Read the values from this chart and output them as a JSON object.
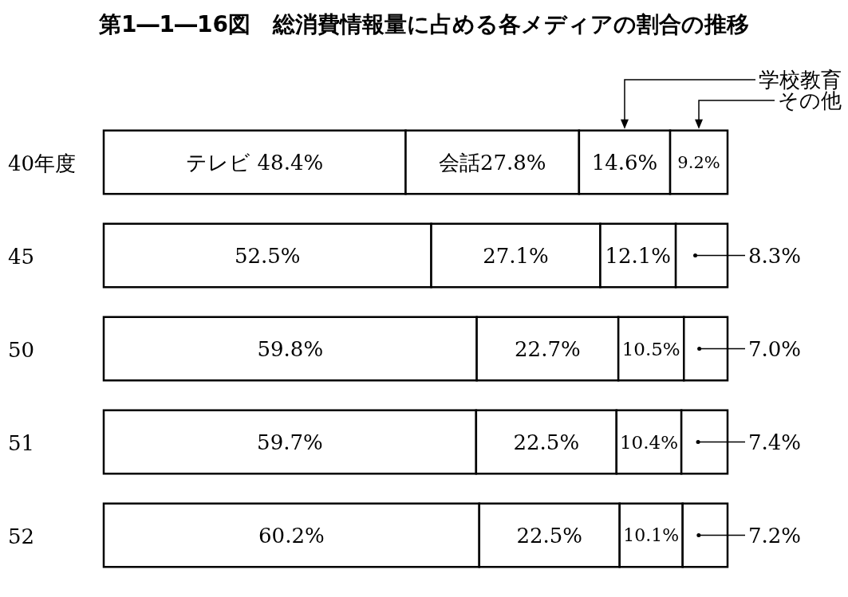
{
  "chart_data": {
    "type": "bar",
    "title": "第1―1―16図　総消費情報量に占める各メディアの割合の推移",
    "orientation": "horizontal",
    "stacked": true,
    "xlim": [
      0,
      100
    ],
    "tick_labels": "y",
    "legend": "top right",
    "categories": [
      "40年度",
      "45",
      "50",
      "51",
      "52"
    ],
    "series": [
      {
        "color": "#ffffff",
        "values": [
          48.4,
          52.5,
          59.8,
          59.7,
          60.2
        ],
        "value_labels": [
          "テレビ 48.4%",
          "52.5%",
          "59.8%",
          "59.7%",
          "60.2%"
        ]
      },
      {
        "color": "#ffffff",
        "values": [
          27.8,
          27.1,
          22.7,
          22.5,
          22.5
        ],
        "value_labels": [
          "会話27.8%",
          "27.1%",
          "22.7%",
          "22.5%",
          "22.5%"
        ]
      },
      {
        "name": "学校教育",
        "color": "#ffffff",
        "values": [
          14.6,
          12.1,
          10.5,
          10.4,
          10.1
        ],
        "value_labels": [
          "14.6%",
          "12.1%",
          "10.5%",
          "10.4%",
          "10.1%"
        ]
      },
      {
        "name": "その他",
        "color": "#ffffff",
        "values": [
          9.2,
          8.3,
          7.0,
          7.4,
          7.2
        ],
        "value_labels": [
          "9.2%",
          "8.3%",
          "7.0%",
          "7.4%",
          "7.2%"
        ]
      }
    ]
  }
}
